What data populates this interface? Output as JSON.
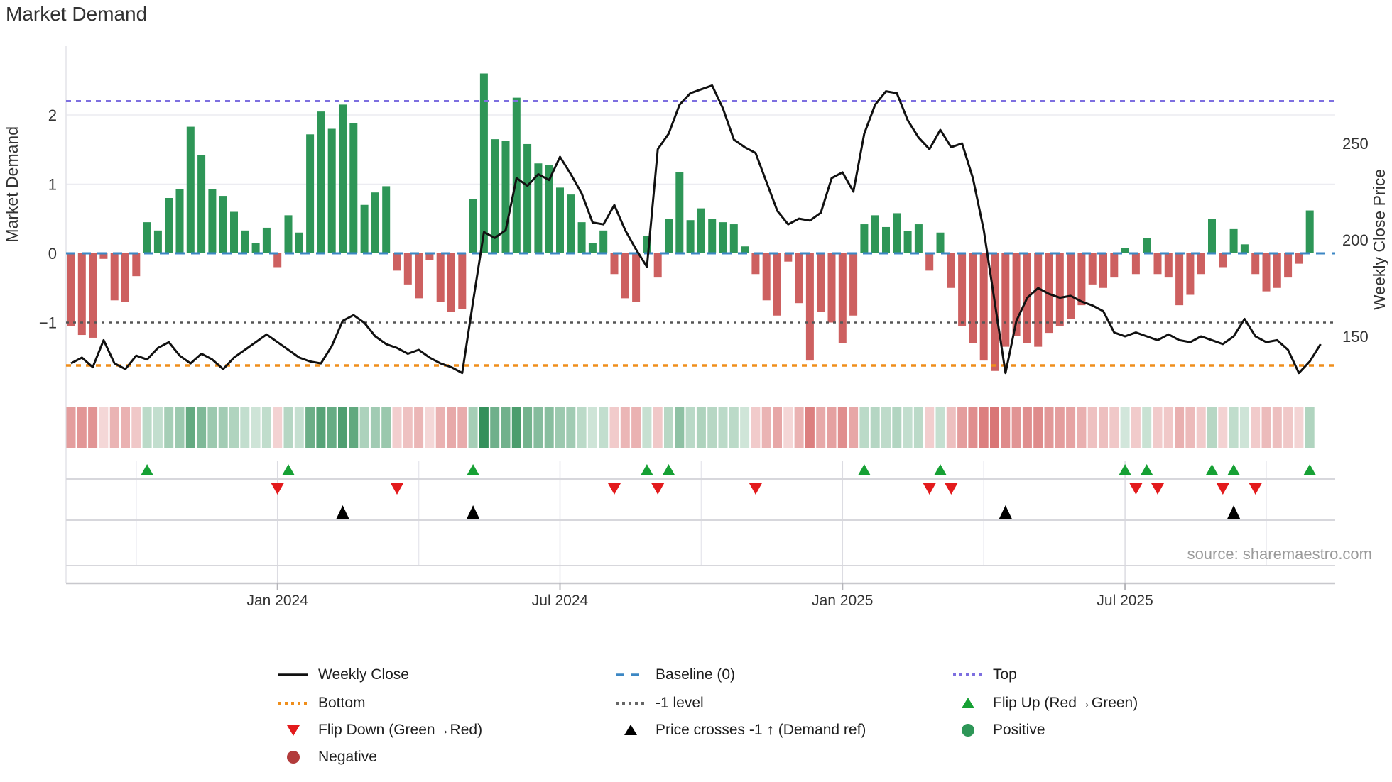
{
  "title": "Market Demand",
  "source": "source: sharemaestro.com",
  "axes": {
    "left_label": "Market Demand",
    "right_label": "Weekly Close Price",
    "left_ticks": [
      2,
      1,
      0,
      -1
    ],
    "right_ticks": [
      250,
      200,
      150
    ]
  },
  "colors": {
    "bar_positive": "#2e9657",
    "bar_negative": "#cd6060",
    "price_line": "#111111",
    "baseline": "#3c87c4",
    "top_line": "#7d6fe0",
    "minus1_line": "#555555",
    "bottom_line": "#ef8e1b",
    "flip_up": "#16a034",
    "flip_down": "#e31a1c",
    "cross_marker": "#000000",
    "positive_dot": "#2d9657",
    "negative_dot": "#b23b3b",
    "heat_green": "30,132,73",
    "heat_red": "203,67,67"
  },
  "chart_data": {
    "type": "bar+line",
    "x_unit": "week",
    "weeks": 115,
    "demand_axis": {
      "label": "Market Demand",
      "ticks": [
        2,
        1,
        0,
        -1
      ],
      "range": [
        -2,
        3
      ]
    },
    "price_axis": {
      "label": "Weekly Close Price",
      "ticks": [
        250,
        200,
        150
      ],
      "range": [
        120,
        290
      ]
    },
    "x_ticks": [
      {
        "label": "Jan 2024",
        "week": 19
      },
      {
        "label": "Jul 2024",
        "week": 45
      },
      {
        "label": "Jan 2025",
        "week": 71
      },
      {
        "label": "Jul 2025",
        "week": 97
      }
    ],
    "quarter_week_lines": [
      6,
      32,
      58,
      84,
      110
    ],
    "ref_lines": {
      "top": 2.2,
      "baseline": 0,
      "minus1": -1,
      "bottom": -1.62
    },
    "demand": [
      -1.05,
      -1.18,
      -1.22,
      -0.08,
      -0.68,
      -0.7,
      -0.33,
      0.45,
      0.33,
      0.8,
      0.93,
      1.83,
      1.42,
      0.93,
      0.83,
      0.6,
      0.33,
      0.15,
      0.37,
      -0.2,
      0.55,
      0.3,
      1.72,
      2.05,
      1.8,
      2.15,
      1.88,
      0.7,
      0.88,
      0.97,
      -0.25,
      -0.45,
      -0.65,
      -0.1,
      -0.7,
      -0.85,
      -0.8,
      0.78,
      2.6,
      1.65,
      1.63,
      2.25,
      1.58,
      1.3,
      1.28,
      0.95,
      0.85,
      0.45,
      0.15,
      0.33,
      -0.3,
      -0.65,
      -0.7,
      0.25,
      -0.35,
      0.5,
      1.17,
      0.48,
      0.65,
      0.5,
      0.45,
      0.42,
      0.1,
      -0.3,
      -0.68,
      -0.9,
      -0.12,
      -0.72,
      -1.55,
      -0.85,
      -1.0,
      -1.3,
      -0.9,
      0.42,
      0.55,
      0.38,
      0.58,
      0.32,
      0.42,
      -0.25,
      0.3,
      -0.5,
      -1.05,
      -1.3,
      -1.55,
      -1.7,
      -1.35,
      -1.2,
      -1.3,
      -1.35,
      -1.15,
      -1.05,
      -0.95,
      -0.75,
      -0.45,
      -0.5,
      -0.35,
      0.08,
      -0.3,
      0.22,
      -0.3,
      -0.35,
      -0.75,
      -0.6,
      -0.3,
      0.5,
      -0.2,
      0.35,
      0.13,
      -0.3,
      -0.55,
      -0.5,
      -0.35,
      -0.15,
      0.62
    ],
    "price": [
      136,
      139,
      134,
      148,
      136,
      133,
      140,
      138,
      144,
      147,
      140,
      136,
      141,
      138,
      133,
      139,
      143,
      147,
      151,
      147,
      143,
      139,
      137,
      136,
      145,
      158,
      161,
      157,
      150,
      146,
      144,
      141,
      143,
      139,
      136,
      134,
      131,
      168,
      204,
      201,
      205,
      232,
      228,
      234,
      231,
      243,
      234,
      224,
      209,
      208,
      218,
      205,
      195,
      186,
      247,
      255,
      270,
      276,
      278,
      280,
      268,
      252,
      248,
      245,
      230,
      215,
      208,
      211,
      210,
      214,
      232,
      235,
      225,
      255,
      270,
      277,
      276,
      262,
      253,
      247,
      257,
      248,
      250,
      232,
      205,
      168,
      131,
      158,
      170,
      175,
      172,
      170,
      171,
      168,
      166,
      163,
      152,
      150,
      152,
      150,
      148,
      151,
      148,
      147,
      150,
      148,
      146,
      150,
      159,
      150,
      147,
      148,
      143,
      131,
      137,
      146
    ],
    "flip_up_weeks": [
      7,
      20,
      37,
      53,
      55,
      73,
      80,
      97,
      99,
      105,
      107,
      114
    ],
    "flip_down_weeks": [
      19,
      30,
      50,
      54,
      63,
      79,
      81,
      98,
      100,
      106,
      109
    ],
    "price_cross_up_weeks": [
      25,
      37,
      86,
      107
    ]
  },
  "legend": {
    "items": [
      {
        "type": "line-solid",
        "color": "#111111",
        "label": "Weekly Close"
      },
      {
        "type": "line-dashed",
        "color": "#3c87c4",
        "label": "Baseline (0)"
      },
      {
        "type": "line-dotted",
        "color": "#7d6fe0",
        "label": "Top"
      },
      {
        "type": "line-dotted",
        "color": "#ef8e1b",
        "label": "Bottom"
      },
      {
        "type": "line-dotted",
        "color": "#666666",
        "label": "-1 level"
      },
      {
        "type": "tri-up",
        "color": "#16a034",
        "label": "Flip Up (Red→Green)"
      },
      {
        "type": "tri-down",
        "color": "#e31a1c",
        "label": "Flip Down (Green→Red)"
      },
      {
        "type": "tri-up",
        "color": "#000000",
        "label": "Price crosses -1 ↑ (Demand ref)"
      },
      {
        "type": "circle",
        "color": "#2d9657",
        "label": "Positive"
      },
      {
        "type": "circle",
        "color": "#b23b3b",
        "label": "Negative"
      }
    ]
  }
}
